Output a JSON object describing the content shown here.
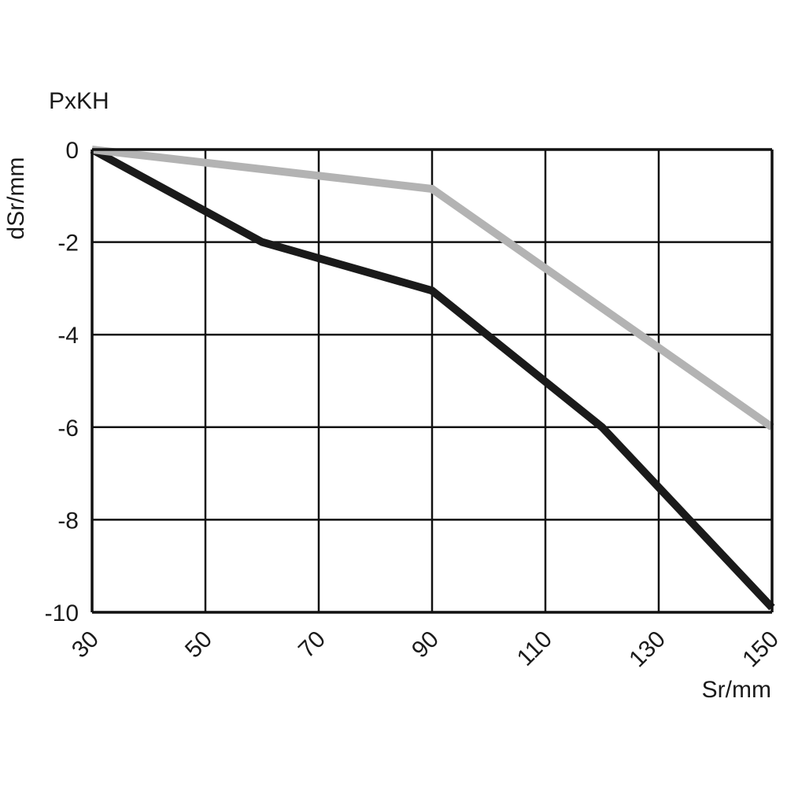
{
  "chart_data": {
    "type": "line",
    "title": "PxKH",
    "xlabel": "Sr/mm",
    "ylabel": "dSr/mm",
    "xlim": [
      30,
      150
    ],
    "ylim": [
      -10,
      0
    ],
    "x_ticks": [
      30,
      50,
      70,
      90,
      110,
      130,
      150
    ],
    "y_ticks": [
      0,
      -2,
      -4,
      -6,
      -8,
      -10
    ],
    "x_tick_labels": [
      "30",
      "50",
      "70",
      "90",
      "110",
      "130",
      "150"
    ],
    "y_tick_labels": [
      "0",
      "-2",
      "-4",
      "-6",
      "-8",
      "-10"
    ],
    "grid": true,
    "series": [
      {
        "color": "#1a1a1a",
        "points": [
          [
            30,
            0
          ],
          [
            60,
            -2
          ],
          [
            90,
            -3.05
          ],
          [
            120,
            -6
          ],
          [
            150,
            -9.9
          ]
        ]
      },
      {
        "color": "#b3b3b3",
        "points": [
          [
            30,
            0
          ],
          [
            90,
            -0.85
          ],
          [
            150,
            -6
          ]
        ]
      }
    ]
  }
}
